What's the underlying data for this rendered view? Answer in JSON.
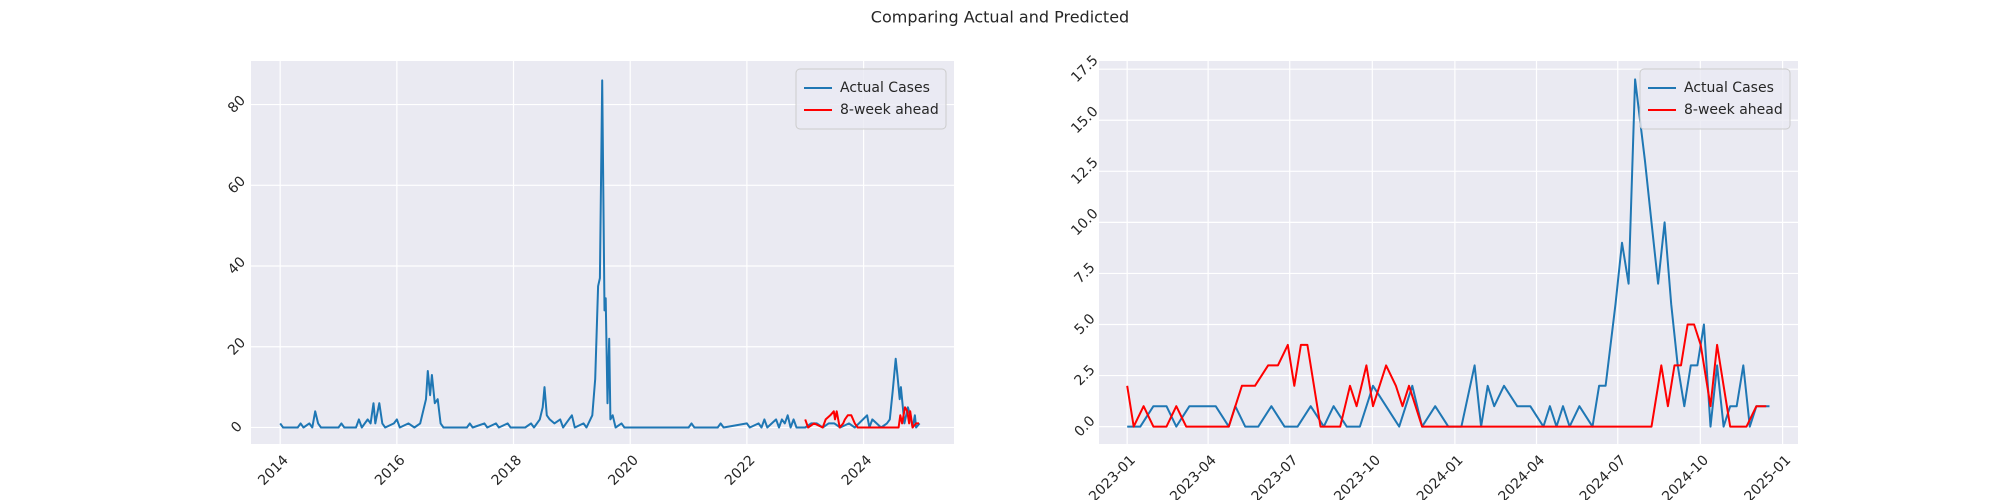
{
  "title": "Comparing Actual and Predicted",
  "chart_data": [
    {
      "type": "line",
      "grid": true,
      "legend": "upper right",
      "xlim": [
        2013.5,
        2025.55
      ],
      "ylim": [
        -4.1,
        90.8
      ],
      "xticks": [
        2014,
        2016,
        2018,
        2020,
        2022,
        2024
      ],
      "yticks": [
        0,
        20,
        40,
        60,
        80
      ],
      "series": [
        {
          "name": "Actual Cases",
          "color": "#1f77b4",
          "x": [
            2014.0,
            2014.05,
            2014.3,
            2014.35,
            2014.4,
            2014.5,
            2014.55,
            2014.6,
            2014.65,
            2014.7,
            2015.0,
            2015.05,
            2015.1,
            2015.3,
            2015.35,
            2015.4,
            2015.5,
            2015.55,
            2015.6,
            2015.63,
            2015.7,
            2015.75,
            2015.8,
            2015.95,
            2016.0,
            2016.05,
            2016.2,
            2016.3,
            2016.4,
            2016.5,
            2016.53,
            2016.57,
            2016.6,
            2016.65,
            2016.7,
            2016.75,
            2016.8,
            2017.2,
            2017.25,
            2017.3,
            2017.5,
            2017.55,
            2017.7,
            2017.75,
            2017.9,
            2017.95,
            2018.2,
            2018.3,
            2018.35,
            2018.45,
            2018.5,
            2018.53,
            2018.57,
            2018.62,
            2018.7,
            2018.8,
            2018.85,
            2018.9,
            2019.0,
            2019.05,
            2019.2,
            2019.25,
            2019.35,
            2019.4,
            2019.45,
            2019.48,
            2019.52,
            2019.56,
            2019.58,
            2019.61,
            2019.64,
            2019.66,
            2019.7,
            2019.75,
            2019.85,
            2019.9,
            2021.0,
            2021.05,
            2021.1,
            2021.5,
            2021.55,
            2021.6,
            2022.0,
            2022.05,
            2022.2,
            2022.25,
            2022.3,
            2022.35,
            2022.5,
            2022.55,
            2022.6,
            2022.65,
            2022.7,
            2022.75,
            2022.8,
            2022.85,
            2023.0,
            2023.1,
            2023.2,
            2023.3,
            2023.4,
            2023.5,
            2023.6,
            2023.75,
            2023.85,
            2024.06,
            2024.1,
            2024.15,
            2024.3,
            2024.4,
            2024.45,
            2024.5,
            2024.55,
            2024.58,
            2024.62,
            2024.64,
            2024.7,
            2024.76,
            2024.8,
            2024.84,
            2024.88,
            2024.9,
            2024.96
          ],
          "values": [
            1,
            0,
            0,
            1,
            0,
            1,
            0,
            4,
            1,
            0,
            0,
            1,
            0,
            0,
            2,
            0,
            2,
            1,
            6,
            1,
            6,
            1,
            0,
            1,
            2,
            0,
            1,
            0,
            1,
            7,
            14,
            8,
            13,
            6,
            7,
            1,
            0,
            0,
            1,
            0,
            1,
            0,
            1,
            0,
            1,
            0,
            0,
            1,
            0,
            2,
            5,
            10,
            3,
            2,
            1,
            2,
            0,
            1,
            3,
            0,
            1,
            0,
            3,
            12,
            35,
            37,
            86,
            29,
            32,
            6,
            22,
            2,
            3,
            0,
            1,
            0,
            0,
            1,
            0,
            0,
            1,
            0,
            1,
            0,
            1,
            0,
            2,
            0,
            2,
            0,
            2,
            1,
            3,
            0,
            2,
            0,
            0,
            1,
            1,
            0,
            1,
            1,
            0,
            1,
            0,
            3,
            0,
            2,
            0,
            1,
            2,
            9,
            17,
            13,
            7,
            10,
            1,
            5,
            3,
            0,
            3,
            0,
            1
          ]
        },
        {
          "name": "8-week ahead",
          "color": "#ff0000",
          "x": [
            2023.0,
            2023.05,
            2023.15,
            2023.3,
            2023.35,
            2023.43,
            2023.49,
            2023.51,
            2023.54,
            2023.59,
            2023.65,
            2023.68,
            2023.73,
            2023.79,
            2023.85,
            2023.9,
            2024.6,
            2024.63,
            2024.66,
            2024.71,
            2024.75,
            2024.78,
            2024.8,
            2024.84,
            2024.9,
            2024.95
          ],
          "values": [
            2,
            0,
            1,
            0,
            2,
            3,
            4,
            2,
            4,
            0,
            1,
            2,
            3,
            3,
            1,
            0,
            0,
            3,
            1,
            5,
            4,
            1,
            4,
            0,
            1,
            1
          ]
        }
      ]
    },
    {
      "type": "line",
      "grid": true,
      "legend": "upper right",
      "xlim": [
        2022.914,
        2025.047
      ],
      "ylim": [
        -0.85,
        17.9
      ],
      "xticks": [
        {
          "value": 2023.0,
          "label": "2023-01"
        },
        {
          "value": 2023.247,
          "label": "2023-04"
        },
        {
          "value": 2023.496,
          "label": "2023-07"
        },
        {
          "value": 2023.748,
          "label": "2023-10"
        },
        {
          "value": 2024.0,
          "label": "2024-01"
        },
        {
          "value": 2024.249,
          "label": "2024-04"
        },
        {
          "value": 2024.497,
          "label": "2024-07"
        },
        {
          "value": 2024.749,
          "label": "2024-10"
        },
        {
          "value": 2025.0,
          "label": "2025-01"
        }
      ],
      "yticks": [
        {
          "value": 0,
          "label": "0.0"
        },
        2.5,
        {
          "value": 5,
          "label": "5.0"
        },
        7.5,
        {
          "value": 10,
          "label": "10.0"
        },
        12.5,
        {
          "value": 15,
          "label": "15.0"
        },
        17.5
      ],
      "series": [
        {
          "name": "Actual Cases",
          "color": "#1f77b4",
          "x": [
            2023.0,
            2023.04,
            2023.08,
            2023.12,
            2023.15,
            2023.19,
            2023.23,
            2023.27,
            2023.31,
            2023.33,
            2023.36,
            2023.4,
            2023.44,
            2023.48,
            2023.52,
            2023.56,
            2023.6,
            2023.63,
            2023.67,
            2023.71,
            2023.75,
            2023.79,
            2023.83,
            2023.87,
            2023.9,
            2023.94,
            2023.98,
            2024.02,
            2024.06,
            2024.08,
            2024.1,
            2024.12,
            2024.15,
            2024.19,
            2024.23,
            2024.27,
            2024.29,
            2024.31,
            2024.33,
            2024.35,
            2024.38,
            2024.42,
            2024.44,
            2024.46,
            2024.49,
            2024.51,
            2024.53,
            2024.55,
            2024.58,
            2024.6,
            2024.62,
            2024.64,
            2024.66,
            2024.68,
            2024.7,
            2024.72,
            2024.74,
            2024.76,
            2024.78,
            2024.8,
            2024.82,
            2024.84,
            2024.86,
            2024.88,
            2024.9,
            2024.92,
            2024.94,
            2024.96
          ],
          "values": [
            0,
            0,
            1,
            1,
            0,
            1,
            1,
            1,
            0,
            1,
            0,
            0,
            1,
            0,
            0,
            1,
            0,
            1,
            0,
            0,
            2,
            1,
            0,
            2,
            0,
            1,
            0,
            0,
            3,
            0,
            2,
            1,
            2,
            1,
            1,
            0,
            1,
            0,
            1,
            0,
            1,
            0,
            2,
            2,
            6,
            9,
            7,
            17,
            13,
            10,
            7,
            10,
            6,
            3,
            1,
            3,
            3,
            5,
            0,
            3,
            0,
            1,
            1,
            3,
            0,
            1,
            1,
            1
          ]
        },
        {
          "name": "8-week ahead",
          "color": "#ff0000",
          "x": [
            2023.0,
            2023.02,
            2023.05,
            2023.08,
            2023.12,
            2023.15,
            2023.18,
            2023.31,
            2023.35,
            2023.39,
            2023.43,
            2023.46,
            2023.49,
            2023.51,
            2023.53,
            2023.55,
            2023.59,
            2023.65,
            2023.68,
            2023.7,
            2023.73,
            2023.75,
            2023.79,
            2023.82,
            2023.84,
            2023.86,
            2023.9,
            2024.6,
            2024.62,
            2024.63,
            2024.65,
            2024.67,
            2024.69,
            2024.71,
            2024.73,
            2024.75,
            2024.78,
            2024.8,
            2024.82,
            2024.84,
            2024.89,
            2024.92,
            2024.95
          ],
          "values": [
            2,
            0,
            1,
            0,
            0,
            1,
            0,
            0,
            2,
            2,
            3,
            3,
            4,
            2,
            4,
            4,
            0,
            0,
            2,
            1,
            3,
            1,
            3,
            2,
            1,
            2,
            0,
            0,
            2,
            3,
            1,
            3,
            3,
            5,
            5,
            4,
            1,
            4,
            2,
            0,
            0,
            1,
            1
          ]
        }
      ]
    }
  ]
}
